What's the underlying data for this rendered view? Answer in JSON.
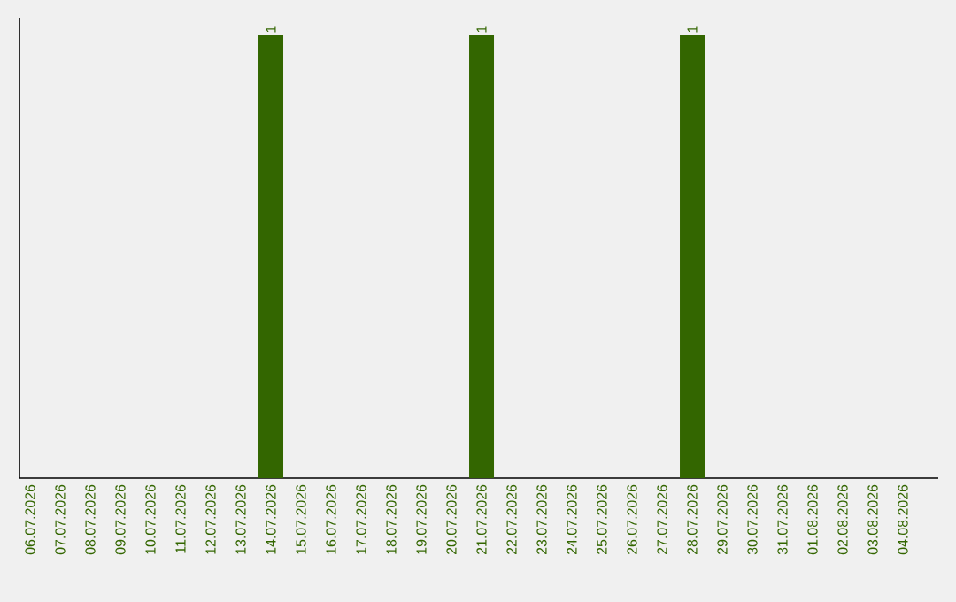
{
  "chart_data": {
    "type": "bar",
    "categories": [
      "06.07.2026",
      "07.07.2026",
      "08.07.2026",
      "09.07.2026",
      "10.07.2026",
      "11.07.2026",
      "12.07.2026",
      "13.07.2026",
      "14.07.2026",
      "15.07.2026",
      "16.07.2026",
      "17.07.2026",
      "18.07.2026",
      "19.07.2026",
      "20.07.2026",
      "21.07.2026",
      "22.07.2026",
      "23.07.2026",
      "24.07.2026",
      "25.07.2026",
      "26.07.2026",
      "27.07.2026",
      "28.07.2026",
      "29.07.2026",
      "30.07.2026",
      "31.07.2026",
      "01.08.2026",
      "02.08.2026",
      "03.08.2026",
      "04.08.2026"
    ],
    "values": [
      0,
      0,
      0,
      0,
      0,
      0,
      0,
      0,
      1,
      0,
      0,
      0,
      0,
      0,
      0,
      1,
      0,
      0,
      0,
      0,
      0,
      0,
      1,
      0,
      0,
      0,
      0,
      0,
      0,
      0
    ],
    "value_labels": [
      null,
      null,
      null,
      null,
      null,
      null,
      null,
      null,
      "1",
      null,
      null,
      null,
      null,
      null,
      null,
      "1",
      null,
      null,
      null,
      null,
      null,
      null,
      "1",
      null,
      null,
      null,
      null,
      null,
      null,
      null
    ],
    "color": "#336600"
  }
}
